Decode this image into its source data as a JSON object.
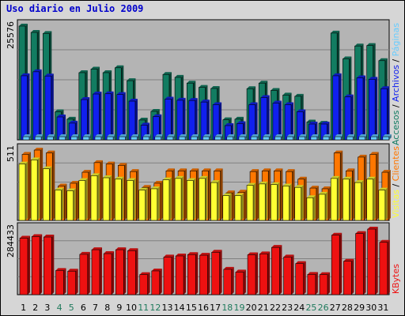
{
  "chart_data": {
    "type": "bar",
    "title": "Uso diario en Julio 2009",
    "days": [
      "1",
      "2",
      "3",
      "4",
      "5",
      "6",
      "7",
      "8",
      "9",
      "10",
      "11",
      "12",
      "13",
      "14",
      "15",
      "16",
      "17",
      "18",
      "19",
      "20",
      "21",
      "22",
      "23",
      "24",
      "25",
      "26",
      "27",
      "28",
      "29",
      "30",
      "31"
    ],
    "weekend_days": [
      "4",
      "5",
      "11",
      "12",
      "18",
      "19",
      "25",
      "26"
    ],
    "colors": {
      "title": "#0000cc",
      "tick_weekday": "#000000",
      "tick_weekend": "#1f7a5c",
      "accesos": "#127c61",
      "paginas": "#66ccff",
      "archivos": "#1020ee",
      "clientes": "#ff7700",
      "visitas": "#ffff33",
      "kbytes": "#ee1111",
      "plot_bg": "#b4b4b4"
    },
    "panels": [
      {
        "max_label": "25576",
        "ymax": 25576,
        "series": [
          {
            "name": "Accesos",
            "values": [
              25576,
              24150,
              23900,
              6300,
              4650,
              15100,
              15900,
              15100,
              16200,
              13300,
              4450,
              6400,
              14700,
              14050,
              12750,
              11800,
              11550,
              4500,
              4650,
              11500,
              12750,
              11100,
              10050,
              9800,
              4000,
              3700,
              24000,
              18200,
              21100,
              21200,
              17800
            ]
          },
          {
            "name": "Páginas",
            "values": [
              700,
              700,
              700,
              700,
              700,
              700,
              700,
              700,
              700,
              700,
              700,
              700,
              700,
              700,
              700,
              700,
              700,
              700,
              700,
              700,
              700,
              700,
              700,
              700,
              700,
              700,
              700,
              700,
              700,
              700,
              700
            ]
          },
          {
            "name": "Archivos",
            "values": [
              14400,
              15300,
              14350,
              5150,
              3750,
              9050,
              10300,
              10350,
              10200,
              8700,
              3300,
              5200,
              9150,
              8900,
              8850,
              8500,
              7900,
              3200,
              3650,
              7900,
              9500,
              8250,
              7900,
              6300,
              3550,
              3550,
              14400,
              9650,
              13950,
              13600,
              11500
            ]
          }
        ]
      },
      {
        "max_label": "511",
        "ymax": 511,
        "series": [
          {
            "name": "Clientes",
            "values": [
              480,
              511,
              490,
              250,
              270,
              350,
              420,
              410,
              400,
              355,
              240,
              270,
              360,
              360,
              360,
              360,
              360,
              200,
              205,
              355,
              360,
              360,
              355,
              300,
              235,
              230,
              490,
              360,
              460,
              480,
              350
            ]
          },
          {
            "name": "Visitas",
            "values": [
              410,
              440,
              375,
              220,
              215,
              290,
              325,
              310,
              300,
              290,
              220,
              230,
              295,
              305,
              290,
              305,
              275,
              180,
              180,
              255,
              265,
              260,
              250,
              240,
              165,
              190,
              305,
              300,
              275,
              300,
              220
            ]
          }
        ]
      },
      {
        "max_label": "284433",
        "ymax": 284433,
        "series": [
          {
            "name": "KBytes",
            "values": [
              245000,
              252000,
              250000,
              105000,
              102000,
              175000,
              195000,
              178000,
              195000,
              191000,
              87000,
              103000,
              163000,
              168000,
              174000,
              171000,
              184000,
              110000,
              98000,
              173000,
              177000,
              205000,
              163000,
              135000,
              88000,
              87000,
              258000,
              145000,
              265000,
              284433,
              227000
            ]
          }
        ]
      }
    ]
  }
}
